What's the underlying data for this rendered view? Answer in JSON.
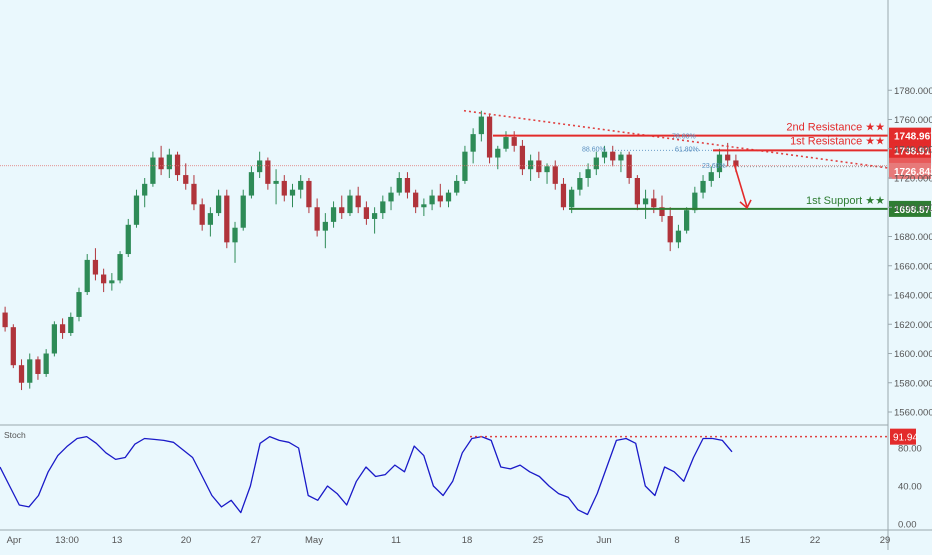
{
  "chart_data": [
    {
      "type": "candlestick",
      "title": "",
      "xlabel": "",
      "ylabel": "",
      "y_ticks": [
        1560,
        1580,
        1600,
        1620,
        1640,
        1660,
        1680,
        1700,
        1720,
        1740,
        1760,
        1780
      ],
      "y_tick_labels": [
        "1560.000",
        "1580.000",
        "1600.000",
        "1620.000",
        "1640.000",
        "1660.000",
        "1680.000",
        "1700.000",
        "1720.000",
        "1740.000",
        "1760.000",
        "1780.000"
      ],
      "ylim": [
        1551,
        1792
      ],
      "x_tick_labels": [
        "Apr",
        "13:00",
        "13",
        "20",
        "27",
        "May",
        "11",
        "18",
        "25",
        "Jun",
        "8",
        "15",
        "22",
        "29"
      ],
      "series": [
        {
          "values": [
            [
              1628,
              1632,
              1615,
              1618
            ],
            [
              1618,
              1620,
              1590,
              1592
            ],
            [
              1592,
              1596,
              1575,
              1580
            ],
            [
              1580,
              1600,
              1576,
              1596
            ],
            [
              1596,
              1598,
              1582,
              1586
            ],
            [
              1586,
              1603,
              1584,
              1600
            ],
            [
              1600,
              1622,
              1598,
              1620
            ],
            [
              1620,
              1624,
              1610,
              1614
            ],
            [
              1614,
              1628,
              1612,
              1625
            ],
            [
              1625,
              1645,
              1622,
              1642
            ],
            [
              1642,
              1668,
              1640,
              1664
            ],
            [
              1664,
              1672,
              1650,
              1654
            ],
            [
              1654,
              1658,
              1642,
              1648
            ],
            [
              1648,
              1655,
              1643,
              1650
            ],
            [
              1650,
              1670,
              1648,
              1668
            ],
            [
              1668,
              1692,
              1666,
              1688
            ],
            [
              1688,
              1712,
              1686,
              1708
            ],
            [
              1708,
              1720,
              1700,
              1716
            ],
            [
              1716,
              1738,
              1714,
              1734
            ],
            [
              1734,
              1742,
              1722,
              1726
            ],
            [
              1726,
              1740,
              1720,
              1736
            ],
            [
              1736,
              1738,
              1718,
              1722
            ],
            [
              1722,
              1730,
              1712,
              1716
            ],
            [
              1716,
              1722,
              1698,
              1702
            ],
            [
              1702,
              1706,
              1684,
              1688
            ],
            [
              1688,
              1700,
              1680,
              1696
            ],
            [
              1696,
              1712,
              1694,
              1708
            ],
            [
              1708,
              1712,
              1672,
              1676
            ],
            [
              1676,
              1690,
              1662,
              1686
            ],
            [
              1686,
              1712,
              1684,
              1708
            ],
            [
              1708,
              1728,
              1706,
              1724
            ],
            [
              1724,
              1738,
              1720,
              1732
            ],
            [
              1732,
              1734,
              1712,
              1716
            ],
            [
              1716,
              1726,
              1702,
              1718
            ],
            [
              1718,
              1722,
              1704,
              1708
            ],
            [
              1708,
              1716,
              1700,
              1712
            ],
            [
              1712,
              1722,
              1706,
              1718
            ],
            [
              1718,
              1720,
              1696,
              1700
            ],
            [
              1700,
              1706,
              1680,
              1684
            ],
            [
              1684,
              1696,
              1672,
              1690
            ],
            [
              1690,
              1704,
              1686,
              1700
            ],
            [
              1700,
              1708,
              1692,
              1696
            ],
            [
              1696,
              1712,
              1694,
              1708
            ],
            [
              1708,
              1714,
              1696,
              1700
            ],
            [
              1700,
              1704,
              1688,
              1692
            ],
            [
              1692,
              1700,
              1682,
              1696
            ],
            [
              1696,
              1708,
              1692,
              1704
            ],
            [
              1704,
              1714,
              1698,
              1710
            ],
            [
              1710,
              1724,
              1708,
              1720
            ],
            [
              1720,
              1724,
              1706,
              1710
            ],
            [
              1710,
              1712,
              1696,
              1700
            ],
            [
              1700,
              1706,
              1694,
              1702
            ],
            [
              1702,
              1712,
              1698,
              1708
            ],
            [
              1708,
              1716,
              1700,
              1704
            ],
            [
              1704,
              1712,
              1700,
              1710
            ],
            [
              1710,
              1722,
              1708,
              1718
            ],
            [
              1718,
              1742,
              1716,
              1738
            ],
            [
              1738,
              1754,
              1730,
              1750
            ],
            [
              1750,
              1766,
              1745,
              1762
            ],
            [
              1762,
              1764,
              1730,
              1734
            ],
            [
              1734,
              1742,
              1726,
              1740
            ],
            [
              1740,
              1752,
              1738,
              1748
            ],
            [
              1748,
              1752,
              1738,
              1742
            ],
            [
              1742,
              1746,
              1722,
              1726
            ],
            [
              1726,
              1736,
              1718,
              1732
            ],
            [
              1732,
              1738,
              1720,
              1724
            ],
            [
              1724,
              1730,
              1716,
              1728
            ],
            [
              1728,
              1732,
              1712,
              1716
            ],
            [
              1716,
              1720,
              1698,
              1700
            ],
            [
              1700,
              1714,
              1696,
              1712
            ],
            [
              1712,
              1724,
              1708,
              1720
            ],
            [
              1720,
              1730,
              1714,
              1726
            ],
            [
              1726,
              1738,
              1722,
              1734
            ],
            [
              1734,
              1742,
              1730,
              1738
            ],
            [
              1738,
              1742,
              1728,
              1732
            ],
            [
              1732,
              1738,
              1724,
              1736
            ],
            [
              1736,
              1738,
              1716,
              1720
            ],
            [
              1720,
              1722,
              1698,
              1702
            ],
            [
              1702,
              1712,
              1692,
              1706
            ],
            [
              1706,
              1712,
              1696,
              1700
            ],
            [
              1700,
              1708,
              1690,
              1694
            ],
            [
              1694,
              1700,
              1670,
              1676
            ],
            [
              1676,
              1688,
              1672,
              1684
            ],
            [
              1684,
              1700,
              1682,
              1698
            ],
            [
              1698,
              1714,
              1696,
              1710
            ],
            [
              1710,
              1722,
              1706,
              1718
            ],
            [
              1718,
              1728,
              1714,
              1724
            ],
            [
              1724,
              1740,
              1720,
              1736
            ],
            [
              1736,
              1744,
              1728,
              1732
            ],
            [
              1732,
              1736,
              1724,
              1728
            ]
          ]
        }
      ],
      "annotations": {
        "resistance_2": {
          "value": 1748.967,
          "label": "1748.967",
          "text": "2nd Resistance ★★"
        },
        "resistance_1": {
          "value": 1738.917,
          "label": "1738.917",
          "text": "1st Resistance ★★"
        },
        "current_price": {
          "value": 1728.364,
          "label": "1728.364"
        },
        "trendline_end": {
          "value": 1726.843,
          "label": "1726.843"
        },
        "support_1": {
          "value": 1698.874,
          "label": "1698.874",
          "text": "1st Support ★★"
        },
        "fib_labels": [
          "78.60%",
          "88.60%",
          "61.80%",
          "23.60%"
        ],
        "fib_values": [
          1748.967,
          1738.917,
          1738.917,
          1728.364
        ]
      },
      "colors": {
        "up": "#2e8b57",
        "down": "#b0343b",
        "resistance": "#e32b2b",
        "support": "#2e7d32",
        "price_line": "#e07070",
        "trend": "#e04040",
        "stoch_line": "#1a1ac8"
      }
    },
    {
      "type": "line",
      "title": "Stoch",
      "ylim": [
        0,
        100
      ],
      "y_ticks": [
        0,
        40,
        80
      ],
      "y_tick_labels": [
        "0.00",
        "40.00",
        "80.00"
      ],
      "series": [
        {
          "values": [
            60,
            40,
            20,
            18,
            30,
            55,
            72,
            82,
            90,
            92,
            85,
            75,
            68,
            70,
            84,
            90,
            89,
            88,
            86,
            78,
            70,
            50,
            30,
            18,
            25,
            12,
            40,
            85,
            92,
            88,
            86,
            80,
            30,
            25,
            40,
            32,
            20,
            45,
            60,
            50,
            52,
            62,
            55,
            82,
            72,
            40,
            30,
            45,
            75,
            90,
            92,
            88,
            60,
            58,
            62,
            55,
            50,
            40,
            32,
            28,
            15,
            10,
            32,
            60,
            88,
            90,
            85,
            40,
            30,
            60,
            55,
            45,
            70,
            90,
            90,
            88,
            76
          ]
        }
      ],
      "annotations": {
        "level": {
          "value": 91.94,
          "label": "91.94"
        }
      }
    }
  ]
}
